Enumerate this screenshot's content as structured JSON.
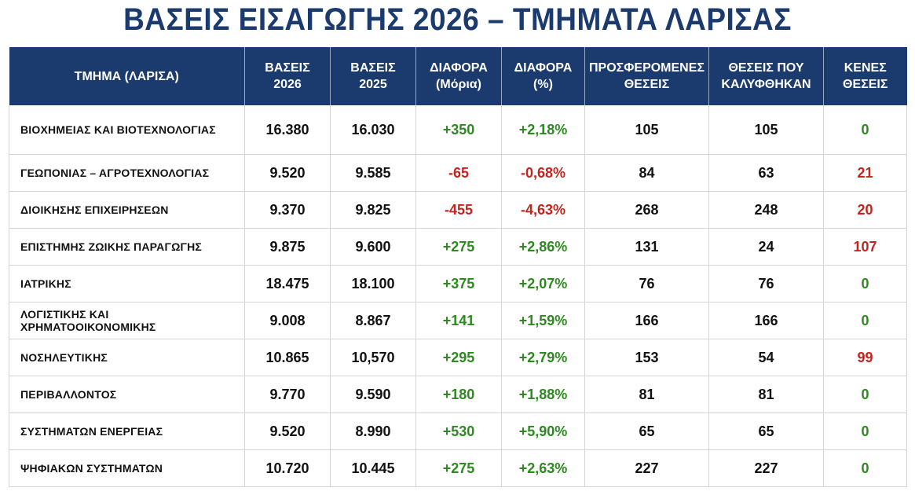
{
  "title": "ΒΑΣΕΙΣ ΕΙΣΑΓΩΓΗΣ 2026 – ΤΜΗΜΑΤΑ ΛΑΡΙΣΑΣ",
  "colors": {
    "header_bg": "#1b3a6e",
    "positive": "#2c8a1f",
    "negative": "#c0261f"
  },
  "headers": [
    [
      "ΤΜΗΜΑ (ΛΑΡΙΣΑ)"
    ],
    [
      "ΒΑΣΕΙΣ",
      "2026"
    ],
    [
      "ΒΑΣΕΙΣ",
      "2025"
    ],
    [
      "ΔΙΑΦΟΡΑ",
      "(Μόρια)"
    ],
    [
      "ΔΙΑΦΟΡΑ",
      "(%)"
    ],
    [
      "ΠΡΟΣΦΕΡΟΜΕΝΕΣ",
      "ΘΕΣΕΙΣ"
    ],
    [
      "ΘΕΣΕΙΣ ΠΟΥ",
      "ΚΑΛΥΦΘΗΚΑΝ"
    ],
    [
      "ΚΕΝΕΣ",
      "ΘΕΣΕΙΣ"
    ]
  ],
  "rows": [
    [
      "ΒΙΟΧΗΜΕΙΑΣ ΚΑΙ ΒΙΟΤΕΧΝΟΛΟΓΙΑΣ",
      "16.380",
      "16.030",
      "+350",
      "+2,18%",
      "105",
      "105",
      "0"
    ],
    [
      "ΓΕΩΠΟΝΙΑΣ – ΑΓΡΟΤΕΧΝΟΛΟΓΙΑΣ",
      "9.520",
      "9.585",
      "-65",
      "-0,68%",
      "84",
      "63",
      "21"
    ],
    [
      "ΔΙΟΙΚΗΣΗΣ ΕΠΙΧΕΙΡΗΣΕΩΝ",
      "9.370",
      "9.825",
      "-455",
      "-4,63%",
      "268",
      "248",
      "20"
    ],
    [
      "ΕΠΙΣΤΗΜΗΣ ΖΩΙΚΗΣ ΠΑΡΑΓΩΓΗΣ",
      "9.875",
      "9.600",
      "+275",
      "+2,86%",
      "131",
      "24",
      "107"
    ],
    [
      "ΙΑΤΡΙΚΗΣ",
      "18.475",
      "18.100",
      "+375",
      "+2,07%",
      "76",
      "76",
      "0"
    ],
    [
      "ΛΟΓΙΣΤΙΚΗΣ ΚΑΙ ΧΡΗΜΑΤΟΟΙΚΟΝΟΜΙΚΗΣ",
      "9.008",
      "8.867",
      "+141",
      "+1,59%",
      "166",
      "166",
      "0"
    ],
    [
      "ΝΟΣΗΛΕΥΤΙΚΗΣ",
      "10.865",
      "10,570",
      "+295",
      "+2,79%",
      "153",
      "54",
      "99"
    ],
    [
      "ΠΕΡΙΒΑΛΛΟΝΤΟΣ",
      "9.770",
      "9.590",
      "+180",
      "+1,88%",
      "81",
      "81",
      "0"
    ],
    [
      "ΣΥΣΤΗΜΑΤΩΝ ΕΝΕΡΓΕΙΑΣ",
      "9.520",
      "8.990",
      "+530",
      "+5,90%",
      "65",
      "65",
      "0"
    ],
    [
      "ΨΗΦΙΑΚΩΝ ΣΥΣΤΗΜΑΤΩΝ",
      "10.720",
      "10.445",
      "+275",
      "+2,63%",
      "227",
      "227",
      "0"
    ]
  ]
}
